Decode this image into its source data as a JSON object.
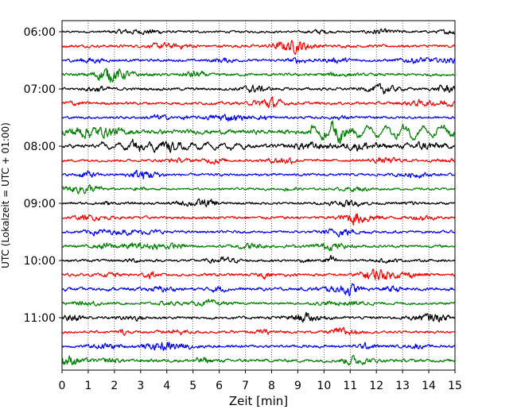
{
  "chart_data": {
    "type": "line",
    "title": "",
    "xlabel": "Zeit  [min]",
    "ylabel": "UTC (Lokalzeit = UTC + 01:00)",
    "xlim": [
      0,
      15
    ],
    "x_ticks": [
      "0",
      "1",
      "2",
      "3",
      "4",
      "5",
      "6",
      "7",
      "8",
      "9",
      "10",
      "11",
      "12",
      "13",
      "14",
      "15"
    ],
    "y_ticks": [
      "06:00",
      "07:00",
      "08:00",
      "09:00",
      "10:00",
      "11:00"
    ],
    "y_tick_rows": [
      0,
      4,
      8,
      12,
      16,
      20
    ],
    "rows": 24,
    "minutes_per_row": 15,
    "first_row": "06:00",
    "grid": "vertical-dotted",
    "trace_colors": [
      "#000000",
      "#ff0000",
      "#0000ff",
      "#008000"
    ],
    "rows_amplitude": [
      0.35,
      0.45,
      0.4,
      0.45,
      0.45,
      0.45,
      0.4,
      0.7,
      0.6,
      0.4,
      0.4,
      0.35,
      0.4,
      0.45,
      0.4,
      0.45,
      0.4,
      0.45,
      0.5,
      0.4,
      0.45,
      0.4,
      0.45,
      0.5
    ]
  }
}
